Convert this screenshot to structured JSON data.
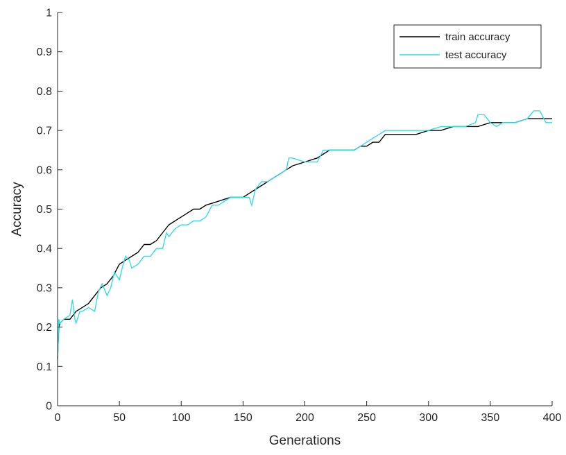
{
  "chart_data": {
    "type": "line",
    "title": "",
    "xlabel": "Generations",
    "ylabel": "Accuracy",
    "xlim": [
      0,
      400
    ],
    "ylim": [
      0,
      1
    ],
    "xticks": [
      0,
      50,
      100,
      150,
      200,
      250,
      300,
      350,
      400
    ],
    "yticks": [
      0,
      0.1,
      0.2,
      0.3,
      0.4,
      0.5,
      0.6,
      0.7,
      0.8,
      0.9,
      1
    ],
    "grid": false,
    "legend_position": "top-right",
    "series": [
      {
        "name": "train accuracy",
        "color": "#000000",
        "x": [
          0,
          1,
          2,
          5,
          10,
          15,
          20,
          25,
          30,
          35,
          40,
          45,
          50,
          55,
          60,
          65,
          70,
          75,
          80,
          85,
          90,
          95,
          100,
          105,
          110,
          115,
          120,
          130,
          140,
          150,
          155,
          160,
          165,
          170,
          175,
          180,
          185,
          190,
          200,
          210,
          215,
          220,
          230,
          240,
          245,
          250,
          255,
          260,
          265,
          270,
          280,
          290,
          300,
          310,
          320,
          330,
          340,
          350,
          360,
          370,
          380,
          390,
          400
        ],
        "y": [
          0.12,
          0.2,
          0.21,
          0.22,
          0.22,
          0.24,
          0.25,
          0.26,
          0.28,
          0.3,
          0.31,
          0.33,
          0.36,
          0.37,
          0.38,
          0.39,
          0.41,
          0.41,
          0.42,
          0.44,
          0.46,
          0.47,
          0.48,
          0.49,
          0.5,
          0.5,
          0.51,
          0.52,
          0.53,
          0.53,
          0.54,
          0.55,
          0.56,
          0.57,
          0.58,
          0.59,
          0.6,
          0.61,
          0.62,
          0.63,
          0.64,
          0.65,
          0.65,
          0.65,
          0.66,
          0.66,
          0.67,
          0.67,
          0.69,
          0.69,
          0.69,
          0.69,
          0.7,
          0.7,
          0.71,
          0.71,
          0.71,
          0.72,
          0.72,
          0.72,
          0.73,
          0.73,
          0.73
        ]
      },
      {
        "name": "test accuracy",
        "color": "#33DDE0",
        "x": [
          0,
          1,
          2,
          5,
          10,
          12,
          14,
          15,
          18,
          20,
          25,
          30,
          33,
          36,
          40,
          43,
          46,
          50,
          53,
          55,
          58,
          60,
          65,
          70,
          75,
          80,
          85,
          88,
          90,
          95,
          100,
          105,
          110,
          115,
          120,
          125,
          130,
          140,
          150,
          155,
          157,
          160,
          165,
          170,
          175,
          180,
          185,
          187,
          190,
          200,
          210,
          215,
          220,
          230,
          240,
          245,
          250,
          255,
          260,
          265,
          270,
          280,
          290,
          300,
          310,
          320,
          330,
          338,
          340,
          345,
          350,
          355,
          360,
          370,
          380,
          385,
          390,
          395,
          400
        ],
        "y": [
          0.1,
          0.22,
          0.21,
          0.22,
          0.23,
          0.27,
          0.22,
          0.21,
          0.24,
          0.24,
          0.25,
          0.24,
          0.29,
          0.31,
          0.28,
          0.3,
          0.34,
          0.32,
          0.36,
          0.38,
          0.37,
          0.35,
          0.36,
          0.38,
          0.38,
          0.4,
          0.4,
          0.44,
          0.43,
          0.45,
          0.46,
          0.46,
          0.47,
          0.47,
          0.48,
          0.51,
          0.51,
          0.53,
          0.53,
          0.53,
          0.51,
          0.55,
          0.57,
          0.57,
          0.58,
          0.59,
          0.6,
          0.63,
          0.63,
          0.62,
          0.62,
          0.65,
          0.65,
          0.65,
          0.65,
          0.66,
          0.67,
          0.68,
          0.69,
          0.7,
          0.7,
          0.7,
          0.7,
          0.7,
          0.71,
          0.71,
          0.71,
          0.72,
          0.74,
          0.74,
          0.72,
          0.71,
          0.72,
          0.72,
          0.73,
          0.75,
          0.75,
          0.72,
          0.72
        ]
      }
    ]
  }
}
